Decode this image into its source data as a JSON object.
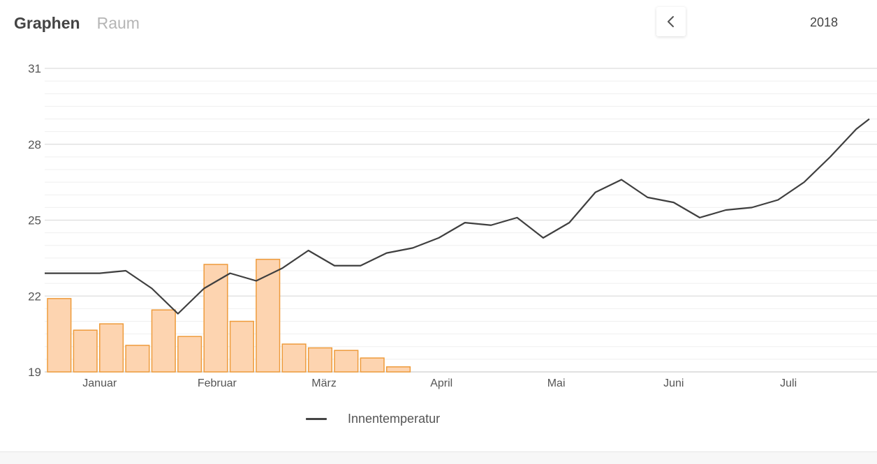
{
  "header": {
    "tabs": [
      {
        "label": "Graphen",
        "active": true
      },
      {
        "label": "Raum",
        "active": false
      }
    ],
    "prev_icon": "chevron-left-icon",
    "year": "2018"
  },
  "colors": {
    "line": "#3f3f3f",
    "bar_fill": "#fdd4b0",
    "bar_stroke": "#ee9b3b",
    "grid_major": "#dddddd",
    "grid_minor": "#efefef"
  },
  "chart_data": {
    "type": "bar+line",
    "ylim": [
      19,
      31
    ],
    "yticks": [
      19,
      22,
      25,
      28,
      31
    ],
    "x_range_weeks": [
      0,
      31.5
    ],
    "month_labels": [
      {
        "label": "Januar",
        "week": 2
      },
      {
        "label": "Februar",
        "week": 6.5
      },
      {
        "label": "März",
        "week": 10.6
      },
      {
        "label": "April",
        "week": 15.1
      },
      {
        "label": "Mai",
        "week": 19.5
      },
      {
        "label": "Juni",
        "week": 24
      },
      {
        "label": "Juli",
        "week": 28.4
      }
    ],
    "series": [
      {
        "type": "line",
        "name": "Innentemperatur",
        "x": [
          0,
          1,
          2,
          3,
          4,
          5,
          6,
          7,
          8,
          9,
          10,
          11,
          12,
          13,
          14,
          15,
          16,
          17,
          18,
          19,
          20,
          21,
          22,
          23,
          24,
          25,
          26,
          27,
          28,
          29,
          30,
          31,
          31.5
        ],
        "values": [
          22.9,
          22.9,
          22.9,
          23.0,
          22.3,
          21.3,
          22.3,
          22.9,
          22.6,
          23.1,
          23.8,
          23.2,
          23.2,
          23.7,
          23.9,
          24.3,
          24.9,
          24.8,
          25.1,
          24.3,
          24.9,
          26.1,
          26.6,
          25.9,
          25.7,
          25.1,
          25.4,
          25.5,
          25.8,
          26.5,
          27.5,
          28.6,
          29.0
        ]
      },
      {
        "type": "bar",
        "x": [
          0,
          1,
          2,
          3,
          4,
          5,
          6,
          7,
          8,
          9,
          10,
          11,
          12,
          13
        ],
        "values": [
          21.9,
          20.65,
          20.9,
          20.05,
          21.45,
          20.4,
          23.25,
          21.0,
          23.45,
          20.1,
          19.95,
          19.85,
          19.55,
          19.2
        ]
      }
    ],
    "legend": [
      {
        "label": "Innentemperatur",
        "style": "line"
      }
    ]
  }
}
